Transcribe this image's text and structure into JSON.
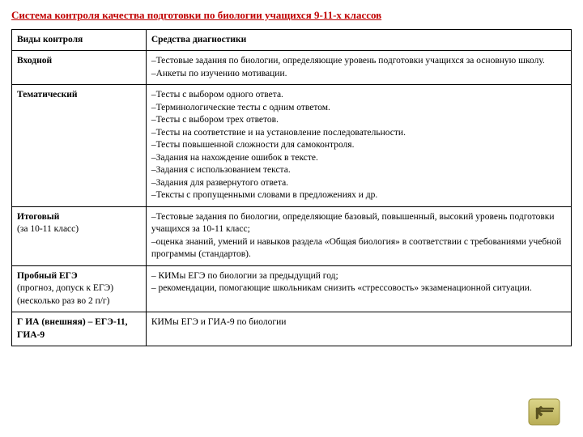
{
  "title_color": "#c00000",
  "background_color": "#ffffff",
  "title": "Система контроля качества подготовки по биологии учащихся 9-11-х классов",
  "header": {
    "col1": "Виды контроля",
    "col2": "Средства   диагностики"
  },
  "rows": [
    {
      "label": "Входной",
      "content": "–Тестовые задания по биологии, определяющие уровень подготовки учащихся за основную школу.\n–Анкеты по изучению мотивации."
    },
    {
      "label": "Тематический",
      "content": "–Тесты с выбором одного ответа.\n–Терминологические тесты с одним ответом.\n–Тесты с выбором трех ответов.\n–Тесты на соответствие и на установление последовательности.\n–Тесты повышенной сложности для самоконтроля.\n–Задания на нахождение ошибок в тексте.\n–Задания с использованием текста.\n–Задания для развернутого ответа.\n–Тексты с пропущенными словами в предложениях и др."
    },
    {
      "label_main": "Итоговый",
      "label_sub": "(за 10-11 класс)",
      "content": "–Тестовые задания по биологии, определяющие базовый, повышенный, высокий уровень подготовки учащихся за 10-11 класс;\n–оценка знаний, умений и навыков раздела «Общая биология» в соответствии с требованиями учебной программы (стандартов)."
    },
    {
      "label_main": "Пробный ЕГЭ",
      "label_sub": "(прогноз, допуск  к ЕГЭ)\n(несколько раз во 2 п/г)",
      "content": "– КИМы ЕГЭ по биологии за предыдущий год;\n– рекомендации, помогающие школьникам снизить «стрессовость» экзаменационной ситуации."
    },
    {
      "label": "Г ИА (внешняя) – ЕГЭ-11, ГИА-9",
      "content": "КИМы ЕГЭ и ГИА-9 по биологии"
    }
  ],
  "icon": {
    "border_color": "#9a8f3a",
    "fill_top": "#dcd58a",
    "fill_bottom": "#b8ad55",
    "arrow_color": "#5a5220"
  }
}
